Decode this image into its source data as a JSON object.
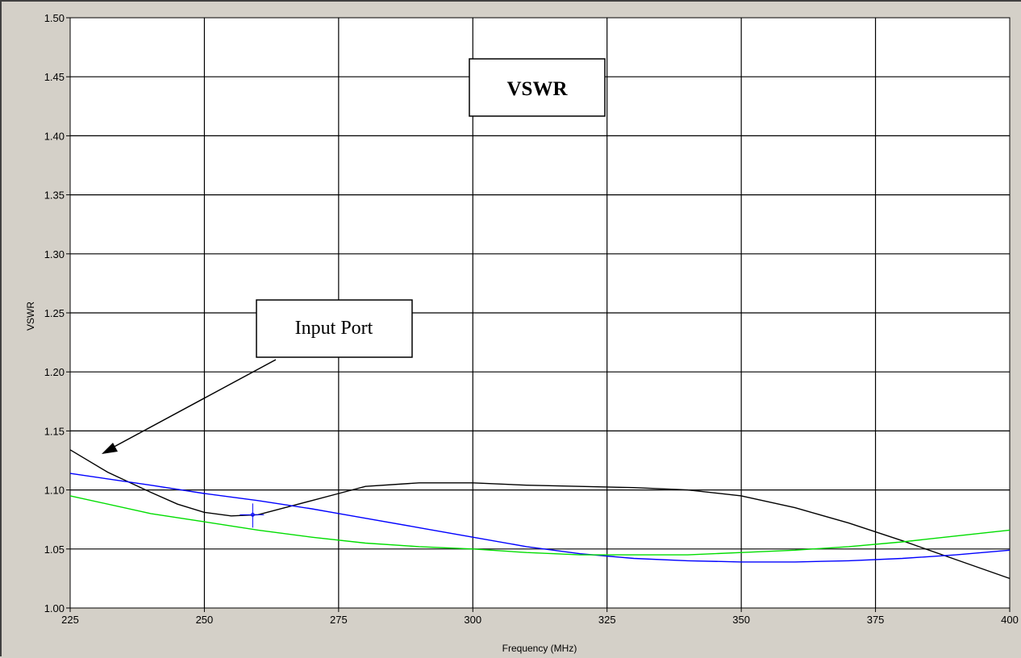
{
  "chart_data": {
    "type": "line",
    "title": "VSWR",
    "xlabel": "Frequency (MHz)",
    "ylabel": "VSWR",
    "xlim": [
      225,
      400
    ],
    "ylim": [
      1.0,
      1.5
    ],
    "x_ticks": [
      "225",
      "250",
      "275",
      "300",
      "325",
      "350",
      "375",
      "400"
    ],
    "y_ticks": [
      "1.00",
      "1.05",
      "1.10",
      "1.15",
      "1.20",
      "1.25",
      "1.30",
      "1.35",
      "1.40",
      "1.45",
      "1.50"
    ],
    "grid": true,
    "annotations": [
      {
        "text": "Input Port",
        "points_to": [
          226,
          1.125
        ]
      }
    ],
    "series": [
      {
        "color": "#000000",
        "x": [
          225,
          232,
          240,
          245,
          250,
          255,
          260,
          265,
          270,
          275,
          280,
          290,
          300,
          310,
          320,
          330,
          340,
          350,
          360,
          370,
          380,
          390,
          400
        ],
        "y": [
          1.134,
          1.115,
          1.098,
          1.088,
          1.081,
          1.078,
          1.079,
          1.085,
          1.091,
          1.097,
          1.103,
          1.106,
          1.106,
          1.104,
          1.103,
          1.102,
          1.1,
          1.095,
          1.085,
          1.072,
          1.057,
          1.041,
          1.025
        ]
      },
      {
        "color": "#0000ff",
        "x": [
          225,
          240,
          250,
          260,
          270,
          280,
          290,
          300,
          310,
          320,
          330,
          340,
          350,
          360,
          370,
          380,
          390,
          400
        ],
        "y": [
          1.114,
          1.104,
          1.097,
          1.091,
          1.084,
          1.076,
          1.068,
          1.06,
          1.052,
          1.046,
          1.042,
          1.04,
          1.039,
          1.039,
          1.04,
          1.042,
          1.045,
          1.049
        ]
      },
      {
        "color": "#00dd00",
        "x": [
          225,
          240,
          250,
          260,
          270,
          280,
          290,
          300,
          310,
          320,
          330,
          340,
          350,
          360,
          370,
          380,
          390,
          400
        ],
        "y": [
          1.095,
          1.08,
          1.073,
          1.066,
          1.06,
          1.055,
          1.052,
          1.05,
          1.047,
          1.045,
          1.045,
          1.045,
          1.047,
          1.049,
          1.052,
          1.056,
          1.061,
          1.066
        ]
      }
    ],
    "cursor": {
      "x": 259,
      "y": 1.079,
      "color": "#0000ff"
    }
  }
}
